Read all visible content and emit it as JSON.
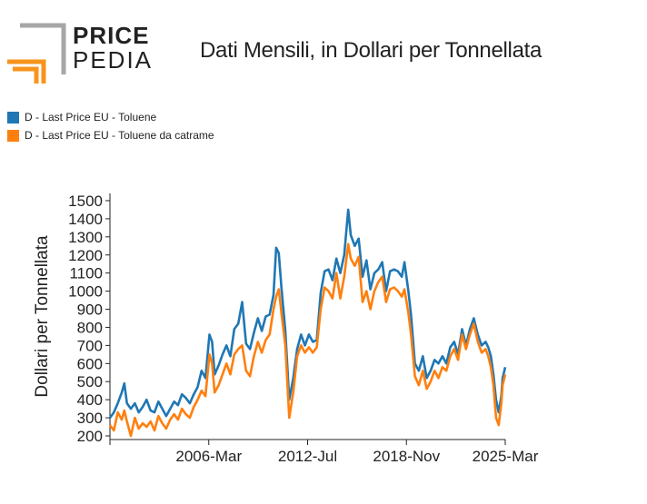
{
  "logo": {
    "word1": "PRICE",
    "word2": "PEDIA",
    "colors": {
      "gray": "#a6a6a6",
      "orange": "#f7941d"
    }
  },
  "chart_data": {
    "type": "line",
    "title": "Dati Mensili, in Dollari per Tonnellata",
    "ylabel": "Dollari per Tonnellata",
    "xlabel": "",
    "x_tick_labels": [
      "2006-Mar",
      "2012-Jul",
      "2018-Nov",
      "2025-Mar"
    ],
    "x_range": [
      "2000-01",
      "2025-03"
    ],
    "ylim": [
      180,
      1540
    ],
    "y_ticks": [
      200,
      300,
      400,
      500,
      600,
      700,
      800,
      900,
      1000,
      1100,
      1200,
      1300,
      1400,
      1500
    ],
    "legend_position": "top-left",
    "grid": false,
    "series": [
      {
        "name": "D - Last Price EU - Toluene",
        "color": "#1f77b4",
        "points": [
          [
            "2000-01",
            300
          ],
          [
            "2000-04",
            330
          ],
          [
            "2000-07",
            380
          ],
          [
            "2000-10",
            440
          ],
          [
            "2000-12",
            490
          ],
          [
            "2001-02",
            380
          ],
          [
            "2001-05",
            350
          ],
          [
            "2001-08",
            380
          ],
          [
            "2001-11",
            330
          ],
          [
            "2002-02",
            360
          ],
          [
            "2002-05",
            400
          ],
          [
            "2002-08",
            340
          ],
          [
            "2002-11",
            330
          ],
          [
            "2003-02",
            390
          ],
          [
            "2003-05",
            350
          ],
          [
            "2003-08",
            310
          ],
          [
            "2003-11",
            350
          ],
          [
            "2004-02",
            390
          ],
          [
            "2004-05",
            370
          ],
          [
            "2004-08",
            430
          ],
          [
            "2004-11",
            410
          ],
          [
            "2005-02",
            380
          ],
          [
            "2005-05",
            430
          ],
          [
            "2005-08",
            470
          ],
          [
            "2005-11",
            560
          ],
          [
            "2006-02",
            520
          ],
          [
            "2006-05",
            760
          ],
          [
            "2006-07",
            720
          ],
          [
            "2006-09",
            540
          ],
          [
            "2006-12",
            590
          ],
          [
            "2007-03",
            650
          ],
          [
            "2007-06",
            700
          ],
          [
            "2007-09",
            640
          ],
          [
            "2007-12",
            790
          ],
          [
            "2008-03",
            820
          ],
          [
            "2008-06",
            940
          ],
          [
            "2008-09",
            710
          ],
          [
            "2008-12",
            680
          ],
          [
            "2009-03",
            770
          ],
          [
            "2009-06",
            850
          ],
          [
            "2009-09",
            780
          ],
          [
            "2009-12",
            860
          ],
          [
            "2010-03",
            870
          ],
          [
            "2010-06",
            980
          ],
          [
            "2010-08",
            1240
          ],
          [
            "2010-10",
            1210
          ],
          [
            "2010-12",
            1020
          ],
          [
            "2011-03",
            780
          ],
          [
            "2011-06",
            400
          ],
          [
            "2011-09",
            520
          ],
          [
            "2011-12",
            680
          ],
          [
            "2012-03",
            760
          ],
          [
            "2012-06",
            700
          ],
          [
            "2012-09",
            760
          ],
          [
            "2012-12",
            720
          ],
          [
            "2013-03",
            730
          ],
          [
            "2013-06",
            990
          ],
          [
            "2013-09",
            1110
          ],
          [
            "2013-12",
            1120
          ],
          [
            "2014-03",
            1060
          ],
          [
            "2014-06",
            1180
          ],
          [
            "2014-09",
            1100
          ],
          [
            "2014-12",
            1200
          ],
          [
            "2015-03",
            1450
          ],
          [
            "2015-05",
            1310
          ],
          [
            "2015-08",
            1250
          ],
          [
            "2015-11",
            1290
          ],
          [
            "2016-02",
            1080
          ],
          [
            "2016-05",
            1170
          ],
          [
            "2016-08",
            1010
          ],
          [
            "2016-11",
            1100
          ],
          [
            "2017-02",
            1120
          ],
          [
            "2017-05",
            1160
          ],
          [
            "2017-08",
            1000
          ],
          [
            "2017-11",
            1110
          ],
          [
            "2018-02",
            1120
          ],
          [
            "2018-05",
            1110
          ],
          [
            "2018-08",
            1080
          ],
          [
            "2018-10",
            1160
          ],
          [
            "2019-01",
            1000
          ],
          [
            "2019-03",
            870
          ],
          [
            "2019-06",
            600
          ],
          [
            "2019-09",
            560
          ],
          [
            "2019-12",
            640
          ],
          [
            "2020-03",
            520
          ],
          [
            "2020-06",
            560
          ],
          [
            "2020-09",
            620
          ],
          [
            "2020-12",
            600
          ],
          [
            "2021-03",
            640
          ],
          [
            "2021-06",
            600
          ],
          [
            "2021-09",
            690
          ],
          [
            "2021-12",
            720
          ],
          [
            "2022-03",
            650
          ],
          [
            "2022-06",
            790
          ],
          [
            "2022-09",
            700
          ],
          [
            "2022-12",
            790
          ],
          [
            "2023-03",
            850
          ],
          [
            "2023-06",
            760
          ],
          [
            "2023-09",
            700
          ],
          [
            "2023-12",
            720
          ],
          [
            "2024-02",
            690
          ],
          [
            "2024-04",
            640
          ],
          [
            "2024-06",
            540
          ],
          [
            "2024-08",
            400
          ],
          [
            "2024-10",
            330
          ],
          [
            "2024-12",
            420
          ],
          [
            "2025-01",
            520
          ],
          [
            "2025-03",
            580
          ]
        ]
      },
      {
        "name": "D - Last Price EU - Toluene da catrame",
        "color": "#ff7f0e",
        "points": [
          [
            "2000-01",
            260
          ],
          [
            "2000-04",
            230
          ],
          [
            "2000-07",
            330
          ],
          [
            "2000-10",
            290
          ],
          [
            "2000-12",
            340
          ],
          [
            "2001-02",
            280
          ],
          [
            "2001-05",
            200
          ],
          [
            "2001-08",
            300
          ],
          [
            "2001-11",
            240
          ],
          [
            "2002-02",
            270
          ],
          [
            "2002-05",
            250
          ],
          [
            "2002-08",
            280
          ],
          [
            "2002-11",
            230
          ],
          [
            "2003-02",
            310
          ],
          [
            "2003-05",
            270
          ],
          [
            "2003-08",
            240
          ],
          [
            "2003-11",
            290
          ],
          [
            "2004-02",
            320
          ],
          [
            "2004-05",
            290
          ],
          [
            "2004-08",
            350
          ],
          [
            "2004-11",
            320
          ],
          [
            "2005-02",
            300
          ],
          [
            "2005-05",
            360
          ],
          [
            "2005-08",
            400
          ],
          [
            "2005-11",
            450
          ],
          [
            "2006-02",
            420
          ],
          [
            "2006-05",
            650
          ],
          [
            "2006-07",
            600
          ],
          [
            "2006-09",
            440
          ],
          [
            "2006-12",
            480
          ],
          [
            "2007-03",
            540
          ],
          [
            "2007-06",
            600
          ],
          [
            "2007-09",
            540
          ],
          [
            "2007-12",
            650
          ],
          [
            "2008-03",
            680
          ],
          [
            "2008-06",
            700
          ],
          [
            "2008-09",
            560
          ],
          [
            "2008-12",
            530
          ],
          [
            "2009-03",
            640
          ],
          [
            "2009-06",
            720
          ],
          [
            "2009-09",
            660
          ],
          [
            "2009-12",
            730
          ],
          [
            "2010-03",
            760
          ],
          [
            "2010-06",
            900
          ],
          [
            "2010-08",
            970
          ],
          [
            "2010-10",
            1010
          ],
          [
            "2010-12",
            880
          ],
          [
            "2011-03",
            700
          ],
          [
            "2011-06",
            300
          ],
          [
            "2011-09",
            440
          ],
          [
            "2011-12",
            640
          ],
          [
            "2012-03",
            700
          ],
          [
            "2012-06",
            660
          ],
          [
            "2012-09",
            690
          ],
          [
            "2012-12",
            660
          ],
          [
            "2013-03",
            690
          ],
          [
            "2013-06",
            900
          ],
          [
            "2013-09",
            1020
          ],
          [
            "2013-12",
            1000
          ],
          [
            "2014-03",
            960
          ],
          [
            "2014-06",
            1100
          ],
          [
            "2014-09",
            960
          ],
          [
            "2014-12",
            1080
          ],
          [
            "2015-03",
            1260
          ],
          [
            "2015-05",
            1180
          ],
          [
            "2015-08",
            1140
          ],
          [
            "2015-11",
            1190
          ],
          [
            "2016-02",
            940
          ],
          [
            "2016-05",
            1000
          ],
          [
            "2016-08",
            900
          ],
          [
            "2016-11",
            1000
          ],
          [
            "2017-02",
            1050
          ],
          [
            "2017-05",
            1080
          ],
          [
            "2017-08",
            940
          ],
          [
            "2017-11",
            1010
          ],
          [
            "2018-02",
            1020
          ],
          [
            "2018-05",
            1000
          ],
          [
            "2018-08",
            970
          ],
          [
            "2018-10",
            1010
          ],
          [
            "2019-01",
            880
          ],
          [
            "2019-03",
            760
          ],
          [
            "2019-06",
            530
          ],
          [
            "2019-09",
            480
          ],
          [
            "2019-12",
            560
          ],
          [
            "2020-03",
            460
          ],
          [
            "2020-06",
            500
          ],
          [
            "2020-09",
            560
          ],
          [
            "2020-12",
            520
          ],
          [
            "2021-03",
            580
          ],
          [
            "2021-06",
            560
          ],
          [
            "2021-09",
            640
          ],
          [
            "2021-12",
            680
          ],
          [
            "2022-03",
            620
          ],
          [
            "2022-06",
            760
          ],
          [
            "2022-09",
            680
          ],
          [
            "2022-12",
            760
          ],
          [
            "2023-03",
            820
          ],
          [
            "2023-06",
            720
          ],
          [
            "2023-09",
            660
          ],
          [
            "2023-12",
            680
          ],
          [
            "2024-02",
            640
          ],
          [
            "2024-04",
            580
          ],
          [
            "2024-06",
            480
          ],
          [
            "2024-08",
            300
          ],
          [
            "2024-10",
            260
          ],
          [
            "2024-12",
            380
          ],
          [
            "2025-01",
            480
          ],
          [
            "2025-03",
            540
          ]
        ]
      }
    ]
  }
}
